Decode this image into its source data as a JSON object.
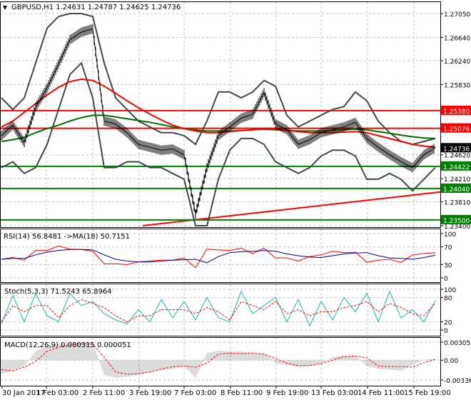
{
  "header": {
    "symbol": "GBPUSD,H1",
    "open": "1.24631",
    "high": "1.24787",
    "low": "1.24625",
    "close": "1.24736",
    "menu_icon": "triangle-down-icon"
  },
  "chart_data": [
    {
      "type": "line",
      "title": "GBPUSD,H1 1.24631 1.24787 1.24625 1.24736",
      "ylim": [
        1.234,
        1.2705
      ],
      "y_ticks": [
        "1.27050",
        "1.26640",
        "1.26240",
        "1.25830",
        "1.24620",
        "1.24210",
        "1.23810",
        "1.23400"
      ],
      "x_ticks": [
        "30 Jan 2017",
        "1 Feb 03:00",
        "2 Feb 11:00",
        "3 Feb 19:00",
        "7 Feb 03:00",
        "8 Feb 11:00",
        "9 Feb 19:00",
        "13 Feb 03:00",
        "14 Feb 11:00",
        "15 Feb 19:00"
      ],
      "grid": true,
      "price": [
        1.2495,
        1.2513,
        1.2483,
        1.2544,
        1.2577,
        1.2618,
        1.266,
        1.2673,
        1.2679,
        1.252,
        1.2515,
        1.25,
        1.248,
        1.2475,
        1.247,
        1.2472,
        1.2462,
        1.236,
        1.244,
        1.2495,
        1.251,
        1.2525,
        1.2532,
        1.2569,
        1.2515,
        1.2505,
        1.248,
        1.2488,
        1.25,
        1.2505,
        1.251,
        1.2518,
        1.249,
        1.2475,
        1.2462,
        1.245,
        1.244,
        1.2462,
        1.2474
      ],
      "ma_red": [
        1.251,
        1.252,
        1.2535,
        1.255,
        1.2565,
        1.2578,
        1.2588,
        1.2592,
        1.259,
        1.258,
        1.2568,
        1.2555,
        1.2543,
        1.2532,
        1.2522,
        1.2513,
        1.2507,
        1.2503,
        1.25,
        1.25,
        1.2502,
        1.2504,
        1.2505,
        1.2507,
        1.2506,
        1.2504,
        1.2502,
        1.25,
        1.25,
        1.25,
        1.2501,
        1.2502,
        1.25,
        1.2495,
        1.249,
        1.2485,
        1.248,
        1.2477,
        1.2475
      ],
      "ma_green": [
        1.2485,
        1.2488,
        1.2492,
        1.25,
        1.2507,
        1.2513,
        1.252,
        1.2526,
        1.253,
        1.253,
        1.2527,
        1.2524,
        1.2521,
        1.2518,
        1.2514,
        1.251,
        1.2507,
        1.2505,
        1.2503,
        1.2503,
        1.2503,
        1.2504,
        1.2505,
        1.2506,
        1.2505,
        1.2504,
        1.2503,
        1.2503,
        1.2503,
        1.2504,
        1.2505,
        1.2506,
        1.2505,
        1.2502,
        1.2499,
        1.2496,
        1.2493,
        1.2491,
        1.249
      ],
      "bb_upper": [
        1.256,
        1.254,
        1.256,
        1.262,
        1.268,
        1.27,
        1.2705,
        1.2705,
        1.27,
        1.262,
        1.256,
        1.254,
        1.252,
        1.251,
        1.25,
        1.25,
        1.2495,
        1.248,
        1.252,
        1.257,
        1.257,
        1.256,
        1.257,
        1.259,
        1.258,
        1.253,
        1.251,
        1.252,
        1.253,
        1.254,
        1.2545,
        1.257,
        1.2555,
        1.252,
        1.25,
        1.2485,
        1.248,
        1.2485,
        1.249
      ],
      "bb_lower": [
        1.244,
        1.245,
        1.243,
        1.244,
        1.248,
        1.254,
        1.26,
        1.262,
        1.256,
        1.244,
        1.244,
        1.245,
        1.245,
        1.244,
        1.244,
        1.243,
        1.242,
        1.234,
        1.234,
        1.242,
        1.247,
        1.249,
        1.249,
        1.248,
        1.245,
        1.244,
        1.243,
        1.244,
        1.246,
        1.247,
        1.247,
        1.246,
        1.242,
        1.242,
        1.243,
        1.242,
        1.24,
        1.242,
        1.244
      ],
      "levels": [
        {
          "value": "1.25380",
          "color": "#ff0000"
        },
        {
          "value": "1.25076",
          "color": "#ff0000"
        },
        {
          "value": "1.24422",
          "color": "#008000"
        },
        {
          "value": "1.24040",
          "color": "#008000"
        },
        {
          "value": "1.23500",
          "color": "#008000"
        }
      ],
      "current_price": {
        "value": "1.24736",
        "color": "#000000"
      },
      "trendline": {
        "from": 1.234,
        "to": 1.2398,
        "color": "#ff0000"
      }
    },
    {
      "type": "line",
      "title": "RSI(14) 56.8481  ->MA(18) 50.7151",
      "ylim": [
        0,
        100
      ],
      "y_ticks": [
        "100",
        "70",
        "30",
        "0"
      ],
      "series": [
        {
          "name": "RSI(14)",
          "color": "#ff0000",
          "values": [
            42,
            46,
            40,
            62,
            62,
            72,
            65,
            64,
            60,
            32,
            32,
            30,
            36,
            38,
            40,
            40,
            45,
            23,
            65,
            63,
            62,
            67,
            55,
            67,
            45,
            45,
            38,
            48,
            52,
            60,
            57,
            58,
            35,
            40,
            42,
            35,
            52,
            55,
            57
          ]
        },
        {
          "name": "MA(18)",
          "color": "#000080",
          "values": [
            42,
            44,
            44,
            52,
            58,
            62,
            64,
            64,
            63,
            52,
            42,
            38,
            36,
            36,
            38,
            40,
            41,
            42,
            34,
            48,
            57,
            59,
            60,
            62,
            60,
            54,
            50,
            47,
            46,
            50,
            54,
            56,
            57,
            50,
            45,
            44,
            42,
            46,
            51
          ]
        }
      ]
    },
    {
      "type": "line",
      "title": "Stoch(5,3,3) 71.5243 65.8964",
      "ylim": [
        0,
        100
      ],
      "y_ticks": [
        "100",
        "80",
        "20",
        "0"
      ],
      "series": [
        {
          "name": "main",
          "color": "#20b2aa",
          "values": [
            15,
            85,
            20,
            90,
            35,
            20,
            90,
            60,
            70,
            40,
            25,
            15,
            50,
            20,
            75,
            30,
            70,
            25,
            80,
            30,
            20,
            95,
            40,
            60,
            80,
            20,
            75,
            10,
            70,
            25,
            80,
            45,
            90,
            20,
            95,
            30,
            50,
            20,
            72
          ]
        },
        {
          "name": "signal",
          "color": "#ff0000",
          "values": [
            20,
            60,
            45,
            60,
            60,
            30,
            60,
            75,
            65,
            55,
            35,
            20,
            35,
            35,
            50,
            50,
            50,
            40,
            55,
            45,
            25,
            70,
            60,
            50,
            70,
            40,
            50,
            35,
            45,
            45,
            55,
            60,
            70,
            45,
            65,
            55,
            40,
            35,
            66
          ]
        }
      ]
    },
    {
      "type": "bar",
      "title": "MACD(12,26,9) 0.000315 0.000051",
      "ylim": [
        -0.003366,
        0.003059
      ],
      "y_ticks": [
        "0.003059",
        "0.00",
        "-0.003366"
      ],
      "series": [
        {
          "name": "histogram",
          "color": "#c0c0c0",
          "values": [
            -0.0023,
            -0.0018,
            -0.001,
            0.0015,
            0.0025,
            0.0028,
            0.003,
            0.003,
            0.003,
            -0.0025,
            -0.003,
            -0.0028,
            -0.0025,
            -0.002,
            -0.0017,
            -0.0015,
            -0.001,
            -0.003,
            0.0012,
            0.0016,
            0.0014,
            0.0015,
            0.001,
            0.0012,
            -0.0005,
            -0.0008,
            -0.0012,
            -0.001,
            -0.0006,
            0.0005,
            0.0008,
            0.0008,
            -0.001,
            -0.0015,
            -0.0016,
            -0.0018,
            -0.0008,
            0.0,
            0.0003
          ]
        },
        {
          "name": "signal",
          "color": "#ff0000",
          "values": [
            -0.0016,
            -0.0018,
            -0.0012,
            -0.0002,
            0.0015,
            0.0022,
            0.0026,
            0.0028,
            0.0027,
            0.0005,
            -0.002,
            -0.0024,
            -0.0023,
            -0.002,
            -0.0015,
            -0.0011,
            -0.001,
            -0.0012,
            -0.0005,
            0.001,
            0.0012,
            0.0011,
            0.0012,
            0.001,
            0.0003,
            -0.0005,
            -0.0009,
            -0.0009,
            -0.0006,
            0.0,
            0.0006,
            0.0007,
            0.0004,
            -0.001,
            -0.0011,
            -0.0011,
            -0.0012,
            -0.0004,
            0.0001
          ]
        }
      ]
    }
  ]
}
